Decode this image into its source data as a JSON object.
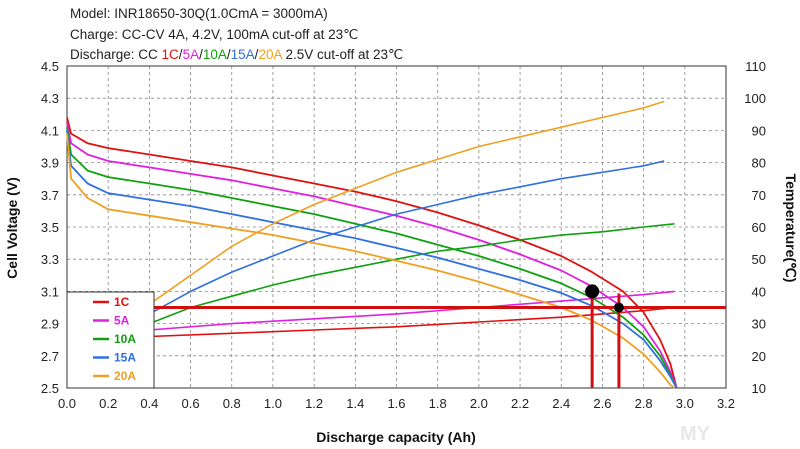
{
  "header": {
    "line1": "Model: INR18650-30Q(1.0CmA = 3000mA)",
    "line2": "Charge: CC-CV 4A, 4.2V, 100mA cut-off at 23℃",
    "line3_prefix": "Discharge: CC ",
    "line3_suffix": " 2.5V cut-off at 23℃"
  },
  "watermark": "MY",
  "colors": {
    "1C": "#e01010",
    "5A": "#e020e0",
    "10A": "#10a010",
    "15A": "#3070e0",
    "20A": "#f0a020",
    "marker_line": "#d01010"
  },
  "chart_data": {
    "type": "line",
    "xlabel": "Discharge capacity (Ah)",
    "ylabel": "Cell Voltage (V)",
    "y2label": "Temperature(℃)",
    "xlim": [
      0,
      3.2
    ],
    "ylim": [
      2.5,
      4.5
    ],
    "y2lim": [
      10,
      110
    ],
    "x_ticks": [
      "0.0",
      "0.2",
      "0.4",
      "0.6",
      "0.8",
      "1.0",
      "1.2",
      "1.4",
      "1.6",
      "1.8",
      "2.0",
      "2.2",
      "2.4",
      "2.6",
      "2.8",
      "3.0",
      "3.2"
    ],
    "y_ticks": [
      "2.5",
      "2.7",
      "2.9",
      "3.1",
      "3.3",
      "3.5",
      "3.7",
      "3.9",
      "4.1",
      "4.3",
      "4.5"
    ],
    "y2_ticks": [
      "10",
      "20",
      "30",
      "40",
      "50",
      "60",
      "70",
      "80",
      "90",
      "100",
      "110"
    ],
    "grid": true,
    "legend_position": "bottom-left",
    "series": [
      {
        "name": "1C",
        "color": "#e01010",
        "voltage": [
          [
            0,
            4.18
          ],
          [
            0.02,
            4.08
          ],
          [
            0.1,
            4.02
          ],
          [
            0.2,
            3.99
          ],
          [
            0.4,
            3.95
          ],
          [
            0.6,
            3.91
          ],
          [
            0.8,
            3.87
          ],
          [
            1.0,
            3.82
          ],
          [
            1.2,
            3.77
          ],
          [
            1.4,
            3.72
          ],
          [
            1.6,
            3.66
          ],
          [
            1.8,
            3.59
          ],
          [
            2.0,
            3.51
          ],
          [
            2.2,
            3.42
          ],
          [
            2.4,
            3.32
          ],
          [
            2.55,
            3.22
          ],
          [
            2.7,
            3.1
          ],
          [
            2.8,
            2.97
          ],
          [
            2.88,
            2.8
          ],
          [
            2.93,
            2.65
          ],
          [
            2.96,
            2.5
          ]
        ],
        "temperature": [
          [
            0.4,
            26
          ],
          [
            0.8,
            27
          ],
          [
            1.2,
            28
          ],
          [
            1.6,
            29
          ],
          [
            2.0,
            30.5
          ],
          [
            2.4,
            32
          ],
          [
            2.8,
            34
          ],
          [
            2.95,
            35
          ]
        ]
      },
      {
        "name": "5A",
        "color": "#e020e0",
        "voltage": [
          [
            0,
            4.15
          ],
          [
            0.02,
            4.02
          ],
          [
            0.1,
            3.95
          ],
          [
            0.2,
            3.91
          ],
          [
            0.4,
            3.87
          ],
          [
            0.6,
            3.83
          ],
          [
            0.8,
            3.79
          ],
          [
            1.0,
            3.74
          ],
          [
            1.2,
            3.69
          ],
          [
            1.4,
            3.63
          ],
          [
            1.6,
            3.57
          ],
          [
            1.8,
            3.5
          ],
          [
            2.0,
            3.42
          ],
          [
            2.2,
            3.33
          ],
          [
            2.4,
            3.23
          ],
          [
            2.55,
            3.13
          ],
          [
            2.7,
            3.0
          ],
          [
            2.8,
            2.88
          ],
          [
            2.88,
            2.73
          ],
          [
            2.93,
            2.6
          ],
          [
            2.96,
            2.5
          ]
        ],
        "temperature": [
          [
            0.4,
            28
          ],
          [
            0.8,
            30
          ],
          [
            1.2,
            31.5
          ],
          [
            1.6,
            33
          ],
          [
            2.0,
            35
          ],
          [
            2.4,
            37
          ],
          [
            2.8,
            39
          ],
          [
            2.95,
            40
          ]
        ]
      },
      {
        "name": "10A",
        "color": "#10a010",
        "voltage": [
          [
            0,
            4.12
          ],
          [
            0.02,
            3.95
          ],
          [
            0.1,
            3.85
          ],
          [
            0.2,
            3.81
          ],
          [
            0.4,
            3.77
          ],
          [
            0.6,
            3.73
          ],
          [
            0.8,
            3.68
          ],
          [
            1.0,
            3.63
          ],
          [
            1.2,
            3.58
          ],
          [
            1.4,
            3.52
          ],
          [
            1.6,
            3.46
          ],
          [
            1.8,
            3.39
          ],
          [
            2.0,
            3.32
          ],
          [
            2.2,
            3.24
          ],
          [
            2.4,
            3.15
          ],
          [
            2.55,
            3.06
          ],
          [
            2.7,
            2.94
          ],
          [
            2.8,
            2.83
          ],
          [
            2.88,
            2.7
          ],
          [
            2.93,
            2.58
          ],
          [
            2.96,
            2.5
          ]
        ],
        "temperature": [
          [
            0.4,
            30
          ],
          [
            0.6,
            35
          ],
          [
            0.8,
            38.5
          ],
          [
            1.0,
            42
          ],
          [
            1.2,
            45
          ],
          [
            1.4,
            47.5
          ],
          [
            1.6,
            50
          ],
          [
            1.8,
            52.5
          ],
          [
            2.0,
            54
          ],
          [
            2.2,
            56
          ],
          [
            2.4,
            57.5
          ],
          [
            2.6,
            58.5
          ],
          [
            2.8,
            60
          ],
          [
            2.95,
            61
          ]
        ]
      },
      {
        "name": "15A",
        "color": "#3070e0",
        "voltage": [
          [
            0,
            4.1
          ],
          [
            0.02,
            3.88
          ],
          [
            0.1,
            3.77
          ],
          [
            0.2,
            3.71
          ],
          [
            0.4,
            3.67
          ],
          [
            0.6,
            3.63
          ],
          [
            0.8,
            3.58
          ],
          [
            1.0,
            3.53
          ],
          [
            1.2,
            3.48
          ],
          [
            1.4,
            3.43
          ],
          [
            1.6,
            3.37
          ],
          [
            1.8,
            3.31
          ],
          [
            2.0,
            3.24
          ],
          [
            2.2,
            3.17
          ],
          [
            2.4,
            3.09
          ],
          [
            2.55,
            3.01
          ],
          [
            2.7,
            2.9
          ],
          [
            2.8,
            2.8
          ],
          [
            2.88,
            2.67
          ],
          [
            2.93,
            2.57
          ],
          [
            2.96,
            2.5
          ]
        ],
        "temperature": [
          [
            0.4,
            33
          ],
          [
            0.6,
            40
          ],
          [
            0.8,
            46
          ],
          [
            1.0,
            51
          ],
          [
            1.2,
            56
          ],
          [
            1.4,
            60
          ],
          [
            1.6,
            64
          ],
          [
            1.8,
            67
          ],
          [
            2.0,
            70
          ],
          [
            2.2,
            72.5
          ],
          [
            2.4,
            75
          ],
          [
            2.6,
            77
          ],
          [
            2.8,
            79
          ],
          [
            2.9,
            80.5
          ]
        ]
      },
      {
        "name": "20A",
        "color": "#f0a020",
        "voltage": [
          [
            0,
            4.08
          ],
          [
            0.02,
            3.8
          ],
          [
            0.1,
            3.68
          ],
          [
            0.2,
            3.61
          ],
          [
            0.4,
            3.57
          ],
          [
            0.6,
            3.53
          ],
          [
            0.8,
            3.49
          ],
          [
            1.0,
            3.45
          ],
          [
            1.2,
            3.4
          ],
          [
            1.4,
            3.35
          ],
          [
            1.6,
            3.29
          ],
          [
            1.8,
            3.23
          ],
          [
            2.0,
            3.16
          ],
          [
            2.2,
            3.08
          ],
          [
            2.4,
            3.0
          ],
          [
            2.55,
            2.92
          ],
          [
            2.7,
            2.81
          ],
          [
            2.8,
            2.71
          ],
          [
            2.88,
            2.6
          ],
          [
            2.93,
            2.52
          ],
          [
            2.95,
            2.5
          ]
        ],
        "temperature": [
          [
            0.4,
            36
          ],
          [
            0.6,
            45
          ],
          [
            0.8,
            54
          ],
          [
            1.0,
            61
          ],
          [
            1.2,
            67
          ],
          [
            1.4,
            72
          ],
          [
            1.6,
            77
          ],
          [
            1.8,
            81
          ],
          [
            2.0,
            85
          ],
          [
            2.2,
            88
          ],
          [
            2.4,
            91
          ],
          [
            2.6,
            94
          ],
          [
            2.8,
            97
          ],
          [
            2.9,
            99
          ]
        ]
      }
    ],
    "annotations": {
      "hline_voltage": 3.0,
      "vlines_capacity": [
        2.55,
        2.68
      ],
      "points": [
        {
          "x": 2.55,
          "y": 3.1,
          "size": "large"
        },
        {
          "x": 2.68,
          "y": 3.0,
          "size": "small"
        }
      ]
    }
  }
}
